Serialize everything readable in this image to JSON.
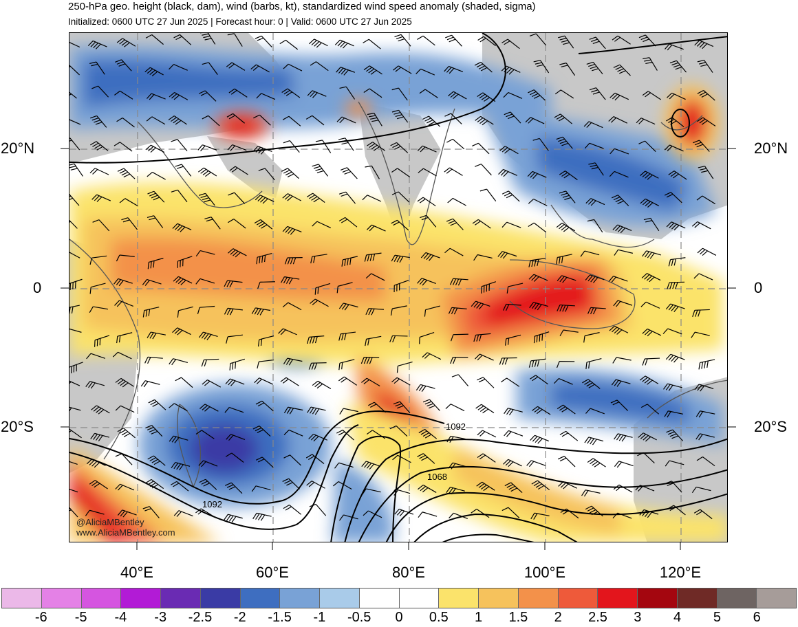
{
  "header": {
    "title": "250-hPa geo. height (black, dam), wind (barbs, kt), standardized wind speed anomaly (shaded, sigma)",
    "subtitle": "Initialized: 0600 UTC 27 Jun 2025 | Forecast hour: 0 | Valid: 0600 UTC 27 Jun 2025"
  },
  "map": {
    "lat_labels": [
      "20°N",
      "0",
      "20°S"
    ],
    "lon_labels": [
      "40°E",
      "60°E",
      "80°E",
      "100°E",
      "120°E"
    ],
    "contour_labels": [
      "1092",
      "1068",
      "1092"
    ],
    "colors": {
      "ocean_base": "#ffffff",
      "land": "#c8c8c8",
      "coast": "#555555",
      "contour": "#000000",
      "barb": "#000000",
      "grid": "#888888"
    },
    "anomaly_regions": [
      {
        "name": "east-asia-jet-max",
        "sigma": 3
      },
      {
        "name": "maritime-continent-max",
        "sigma": 3
      },
      {
        "name": "south-indian-ocean-min",
        "sigma": -2.5
      },
      {
        "name": "southwest-jet-max",
        "sigma": 3
      }
    ]
  },
  "colorbar": {
    "colors": [
      "#ebb8e8",
      "#e481e6",
      "#d555e0",
      "#b21bd6",
      "#6a2bb3",
      "#3a3ba5",
      "#3e6ec0",
      "#79a2d6",
      "#a9cbe9",
      "#ffffff",
      "#ffffff",
      "#fbe36b",
      "#f6c25c",
      "#f3914a",
      "#ee5a3a",
      "#e3151c",
      "#a4060f",
      "#6f2a26",
      "#6e6462",
      "#a69c99"
    ],
    "labels": [
      "-6",
      "-5",
      "-4",
      "-3",
      "-2.5",
      "-2",
      "-1.5",
      "-1",
      "-0.5",
      "0",
      "0.5",
      "1",
      "1.5",
      "2",
      "2.5",
      "3",
      "4",
      "5",
      "6"
    ]
  },
  "credit": {
    "handle": "@AliciaMBentley",
    "site": "www.AliciaMBentley.com"
  }
}
